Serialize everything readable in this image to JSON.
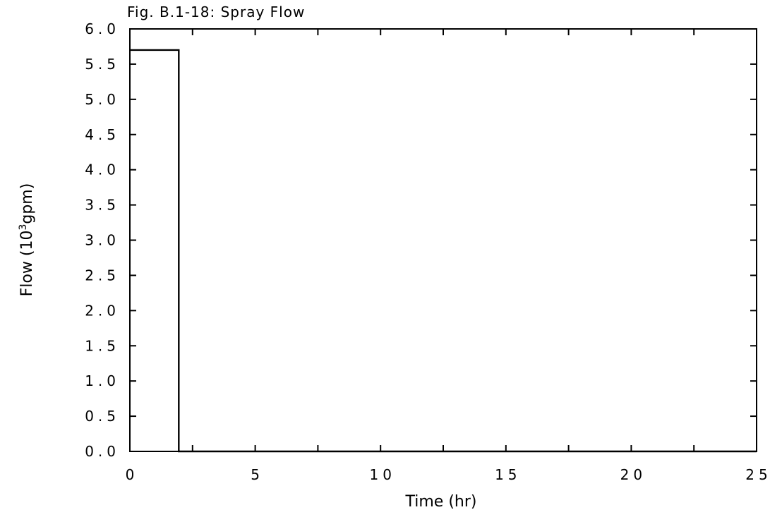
{
  "chart_data": {
    "type": "line",
    "title": "Fig. B.1-18: Spray Flow",
    "xlabel": "Time (hr)",
    "ylabel": {
      "prefix": "Flow (10",
      "superscript": "3",
      "suffix": "gpm)"
    },
    "xlim": [
      0,
      25
    ],
    "ylim": [
      0,
      6
    ],
    "x_ticks": [
      0,
      5,
      10,
      15,
      20,
      25
    ],
    "x_tick_labels": [
      "0",
      "5",
      "10",
      "15",
      "20",
      "25"
    ],
    "y_ticks": [
      0,
      0.5,
      1,
      1.5,
      2,
      2.5,
      3,
      3.5,
      4,
      4.5,
      5,
      5.5,
      6
    ],
    "y_tick_labels": [
      "0.0",
      "0.5",
      "1.0",
      "1.5",
      "2.0",
      "2.5",
      "3.0",
      "3.5",
      "4.0",
      "4.5",
      "5.0",
      "5.5",
      "6.0"
    ],
    "grid": false,
    "series": [
      {
        "x": [
          0,
          1.95,
          1.95,
          25
        ],
        "y": [
          5.7,
          5.7,
          0,
          0
        ]
      }
    ]
  }
}
